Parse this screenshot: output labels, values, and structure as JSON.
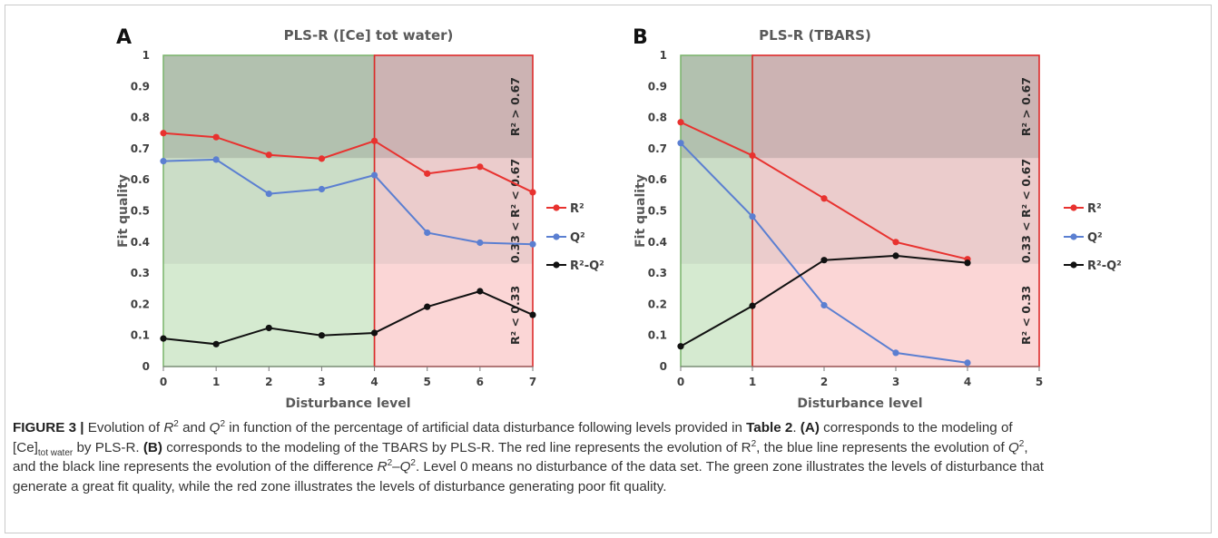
{
  "charts_data_note": "",
  "chart_data": [
    {
      "panel_letter": "A",
      "type": "line",
      "title": "PLS-R ([Ce] tot water)",
      "xlabel": "Disturbance level",
      "ylabel": "Fit quality",
      "x": [
        0,
        1,
        2,
        3,
        4,
        5,
        6,
        7
      ],
      "xlim": [
        0,
        7
      ],
      "ylim": [
        0,
        1
      ],
      "x_ticks": [
        "0",
        "1",
        "2",
        "3",
        "4",
        "5",
        "6",
        "7"
      ],
      "y_ticks": [
        "0",
        "0.1",
        "0.2",
        "0.3",
        "0.4",
        "0.5",
        "0.6",
        "0.7",
        "0.8",
        "0.9",
        "1"
      ],
      "series": [
        {
          "name": "R²",
          "color": "#e8322f",
          "values": [
            0.75,
            0.737,
            0.68,
            0.668,
            0.725,
            0.62,
            0.642,
            0.56
          ]
        },
        {
          "name": "Q²",
          "color": "#5b7fd1",
          "values": [
            0.66,
            0.665,
            0.555,
            0.57,
            0.615,
            0.43,
            0.398,
            0.393
          ]
        },
        {
          "name": "R²-Q²",
          "color": "#111111",
          "values": [
            0.09,
            0.072,
            0.124,
            0.1,
            0.108,
            0.192,
            0.242,
            0.166
          ]
        }
      ],
      "green_zone_x": [
        0,
        4
      ],
      "red_zone_x": [
        4,
        7
      ],
      "bands": [
        0.33,
        0.67
      ],
      "band_labels": [
        "R² > 0.67",
        "0.33 < R² < 0.67",
        "R² < 0.33"
      ],
      "legend": "right"
    },
    {
      "panel_letter": "B",
      "type": "line",
      "title": "PLS-R (TBARS)",
      "xlabel": "Disturbance level",
      "ylabel": "Fit quality",
      "x": [
        0,
        1,
        2,
        3,
        4
      ],
      "xlim": [
        0,
        5
      ],
      "ylim": [
        0,
        1
      ],
      "x_ticks": [
        "0",
        "1",
        "2",
        "3",
        "4",
        "5"
      ],
      "y_ticks": [
        "0",
        "0.1",
        "0.2",
        "0.3",
        "0.4",
        "0.5",
        "0.6",
        "0.7",
        "0.8",
        "0.9",
        "1"
      ],
      "series": [
        {
          "name": "R²",
          "color": "#e8322f",
          "values": [
            0.785,
            0.678,
            0.54,
            0.4,
            0.345
          ]
        },
        {
          "name": "Q²",
          "color": "#5b7fd1",
          "values": [
            0.718,
            0.482,
            0.197,
            0.044,
            0.012
          ]
        },
        {
          "name": "R²-Q²",
          "color": "#111111",
          "values": [
            0.065,
            0.195,
            0.342,
            0.356,
            0.333
          ]
        }
      ],
      "green_zone_x": [
        0,
        1
      ],
      "red_zone_x": [
        1,
        5
      ],
      "bands": [
        0.33,
        0.67
      ],
      "band_labels": [
        "R² > 0.67",
        "0.33 < R² < 0.67",
        "R² < 0.33"
      ],
      "legend": "right"
    }
  ],
  "caption": {
    "label": "FIGURE 3 |",
    "t1": " Evolution of ",
    "r": "R",
    "two": "2",
    "and": " and ",
    "q": "Q",
    "t2": " in function of the percentage of artificial data disturbance following levels provided in ",
    "table_ref": "Table 2",
    "t3": ". ",
    "a_ref": "(A)",
    "t4": " corresponds to the modeling of",
    "ce": "[Ce]",
    "totwater": "tot water",
    "t5": " by PLS-R. ",
    "b_ref": "(B)",
    "t6": " corresponds to the modeling of the TBARS by PLS-R. The red line represents the evolution of R",
    "t7": ", the blue line represents the evolution of ",
    "t8": ",",
    "t9": "and the black line represents the evolution of the difference ",
    "dash": "–",
    "t10": ". Level 0 means no disturbance of the data set. The green zone illustrates the levels of disturbance that",
    "t11": "generate a great fit quality, while the red zone illustrates the levels of disturbance generating poor fit quality."
  }
}
